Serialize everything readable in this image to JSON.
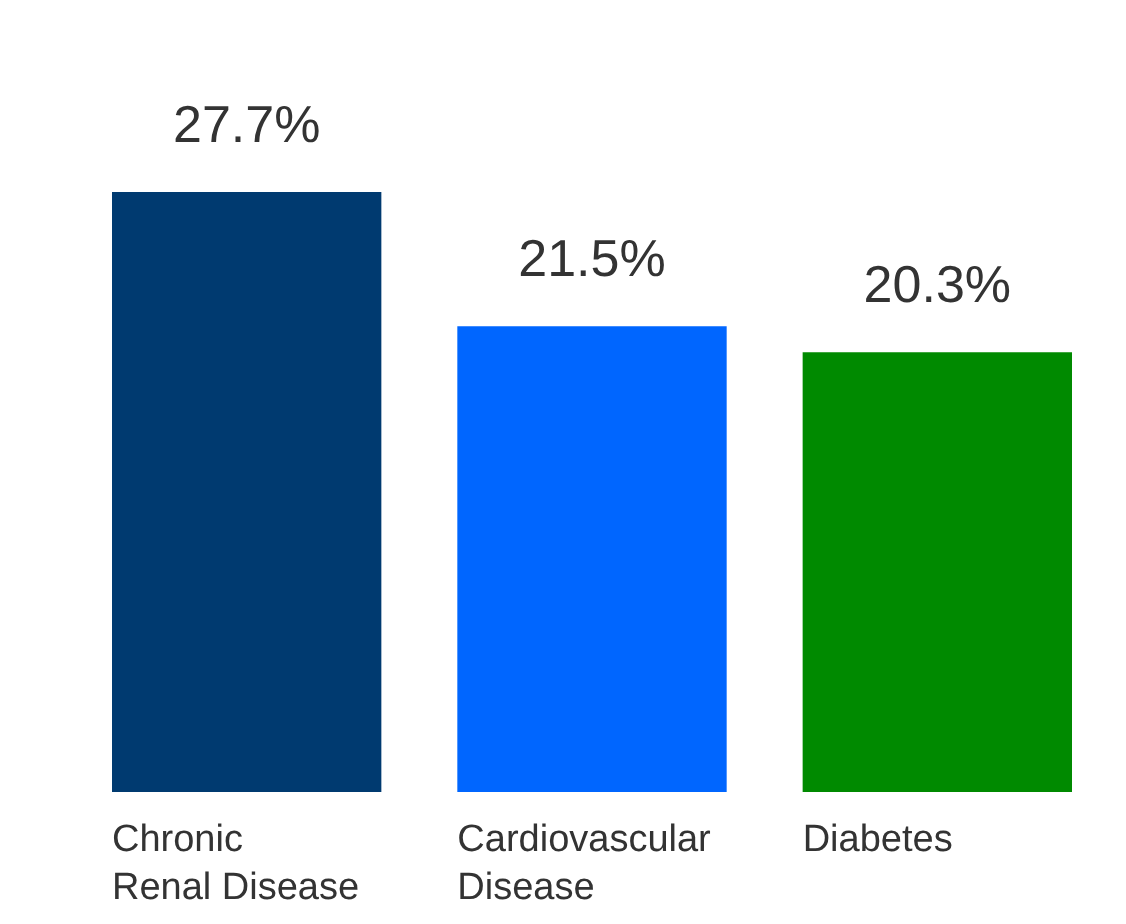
{
  "chart_data": {
    "type": "bar",
    "categories": [
      "Chronic\nRenal Disease",
      "Cardiovascular\nDisease",
      "Diabetes"
    ],
    "values": [
      27.7,
      21.5,
      20.3
    ],
    "colors": [
      "#003a70",
      "#0066ff",
      "#008a00"
    ],
    "value_labels": [
      "27.7%",
      "21.5%",
      "20.3%"
    ],
    "grid": false,
    "legend": false
  }
}
